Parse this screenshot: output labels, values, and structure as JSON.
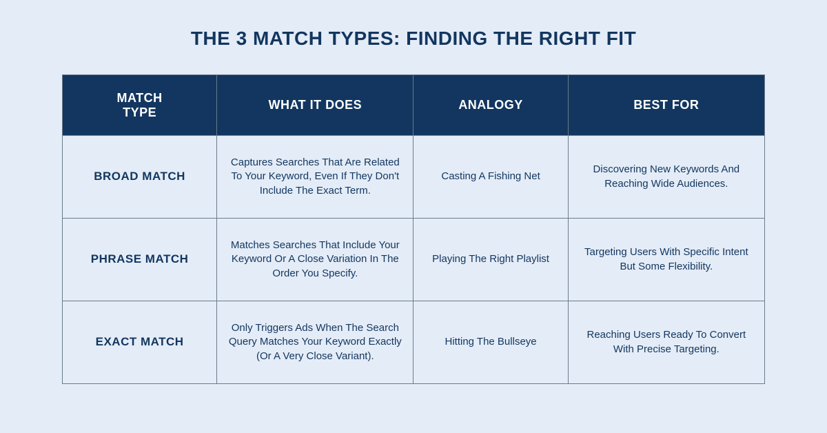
{
  "title": "THE 3 MATCH TYPES: FINDING THE RIGHT FIT",
  "colors": {
    "background": "#e4ecf7",
    "header_bg": "#12365f",
    "header_text": "#ffffff",
    "cell_bg": "#e4ecf7",
    "cell_text": "#12365f",
    "border": "#6b7a8a"
  },
  "table": {
    "columns": [
      {
        "label": "MATCH\nTYPE",
        "width_pct": 22
      },
      {
        "label": "WHAT IT DOES",
        "width_pct": 28
      },
      {
        "label": "ANALOGY",
        "width_pct": 22
      },
      {
        "label": "BEST FOR",
        "width_pct": 28
      }
    ],
    "rows": [
      {
        "match_type": "BROAD MATCH",
        "what_it_does": "Captures Searches That Are Related To Your Keyword, Even If They Don't Include The Exact Term.",
        "analogy": "Casting A Fishing Net",
        "best_for": "Discovering New Keywords And Reaching Wide Audiences."
      },
      {
        "match_type": "PHRASE MATCH",
        "what_it_does": "Matches Searches That Include Your Keyword Or A Close Variation In The Order You Specify.",
        "analogy": "Playing The Right Playlist",
        "best_for": "Targeting Users With Specific Intent But Some Flexibility."
      },
      {
        "match_type": "EXACT MATCH",
        "what_it_does": "Only Triggers Ads When The Search Query Matches Your Keyword Exactly (Or A Very Close Variant).",
        "analogy": "Hitting The Bullseye",
        "best_for": "Reaching Users Ready To Convert With Precise Targeting."
      }
    ]
  },
  "typography": {
    "title_fontsize": 28,
    "header_fontsize": 18,
    "row_label_fontsize": 17,
    "cell_fontsize": 15
  }
}
